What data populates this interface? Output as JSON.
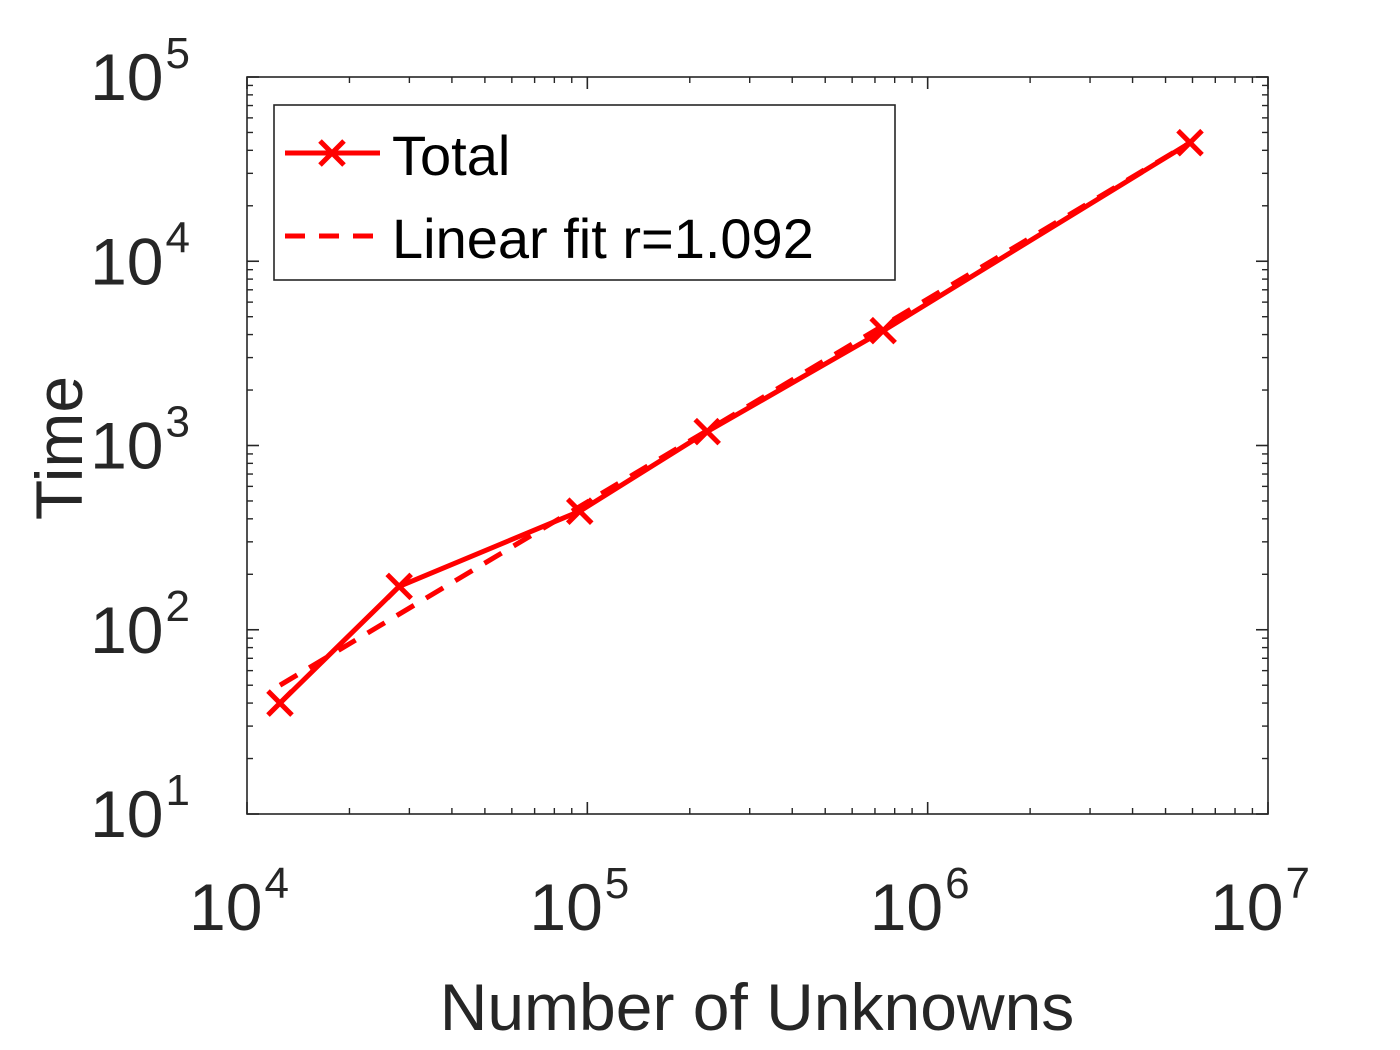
{
  "chart_data": {
    "type": "line",
    "xlabel": "Number of Unknowns",
    "ylabel": "Time",
    "xscale": "log",
    "yscale": "log",
    "xlim": [
      10000,
      10000000
    ],
    "ylim": [
      10,
      100000
    ],
    "x_ticks": [
      {
        "value": 10000,
        "base": "10",
        "exp": "4"
      },
      {
        "value": 100000,
        "base": "10",
        "exp": "5"
      },
      {
        "value": 1000000,
        "base": "10",
        "exp": "6"
      },
      {
        "value": 10000000,
        "base": "10",
        "exp": "7"
      }
    ],
    "y_ticks": [
      {
        "value": 10,
        "base": "10",
        "exp": "1"
      },
      {
        "value": 100,
        "base": "10",
        "exp": "2"
      },
      {
        "value": 1000,
        "base": "10",
        "exp": "3"
      },
      {
        "value": 10000,
        "base": "10",
        "exp": "4"
      },
      {
        "value": 100000,
        "base": "10",
        "exp": "5"
      }
    ],
    "grid": false,
    "legend_position": "top-left",
    "series": [
      {
        "name": "Total",
        "style": "solid",
        "marker": "x",
        "color": "#ff0000",
        "x": [
          12500,
          28000,
          95000,
          225000,
          740000,
          5900000
        ],
        "y": [
          40,
          172,
          440,
          1190,
          4200,
          44000
        ]
      },
      {
        "name": "Linear fit r=1.092",
        "style": "dashed",
        "marker": "none",
        "color": "#ff0000",
        "x": [
          12500,
          5900000
        ],
        "y": [
          50,
          44000
        ]
      }
    ]
  }
}
